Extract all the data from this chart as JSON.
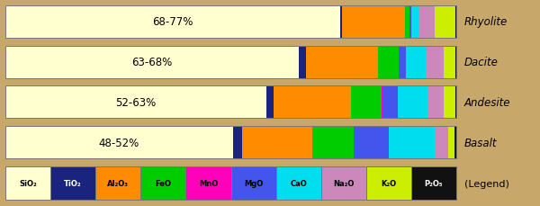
{
  "rocks": [
    "Rhyolite",
    "Dacite",
    "Andesite",
    "Basalt"
  ],
  "labels": [
    "68-77%",
    "63-68%",
    "52-63%",
    "48-52%"
  ],
  "mineral_labels": [
    "SiO₂",
    "TiO₂",
    "Al₂O₃",
    "FeO",
    "MnO",
    "MgO",
    "CaO",
    "Na₂O",
    "K₂O",
    "P₂O₅"
  ],
  "colors": [
    "#ffffd0",
    "#1a237e",
    "#ff8c00",
    "#00cc00",
    "#ff00bb",
    "#4455ee",
    "#00ddee",
    "#cc88bb",
    "#ccee00",
    "#111111"
  ],
  "bar_data": [
    [
      72.0,
      0.5,
      13.5,
      1.0,
      0.1,
      0.3,
      1.5,
      3.5,
      4.5,
      0.1
    ],
    [
      65.0,
      1.5,
      16.0,
      4.5,
      0.1,
      1.5,
      4.5,
      4.0,
      2.5,
      0.2
    ],
    [
      57.0,
      1.5,
      17.0,
      6.5,
      0.2,
      3.5,
      6.5,
      3.5,
      2.5,
      0.2
    ],
    [
      50.0,
      2.0,
      15.5,
      9.0,
      0.3,
      7.5,
      10.0,
      3.0,
      1.5,
      0.3
    ]
  ],
  "background_color": "#c8a86a",
  "bar_bg_color": "#ffffd0",
  "fig_width": 6.0,
  "fig_height": 2.3
}
